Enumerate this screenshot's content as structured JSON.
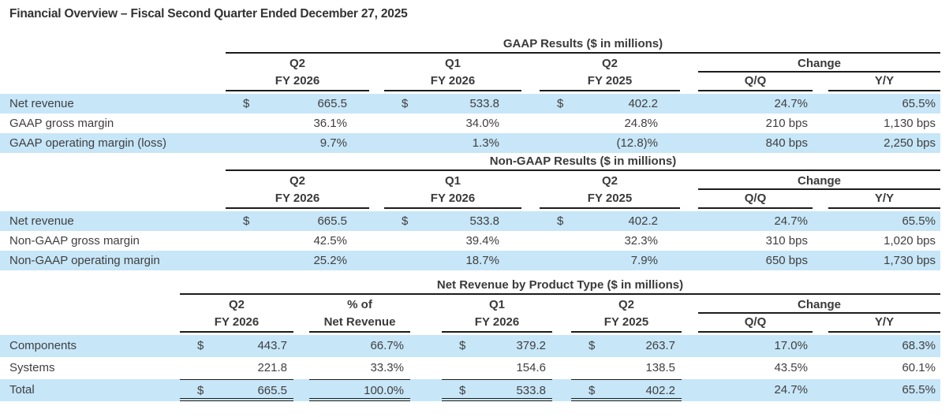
{
  "page_title": "Financial Overview – Fiscal Second Quarter Ended December 27, 2025",
  "colors": {
    "row_highlight": "#c7e6f8",
    "rule": "#1c1c1c",
    "text": "#3f3f3f"
  },
  "tables": {
    "gaap": {
      "title": "GAAP Results ($ in millions)",
      "headers": {
        "p1a": "Q2",
        "p1b": "FY 2026",
        "p2a": "Q1",
        "p2b": "FY 2026",
        "p3a": "Q2",
        "p3b": "FY 2025",
        "change": "Change",
        "qq": "Q/Q",
        "yy": "Y/Y"
      },
      "rows": [
        {
          "label": "Net revenue",
          "d1": "$",
          "v1": "665.5",
          "d2": "$",
          "v2": "533.8",
          "d3": "$",
          "v3": "402.2",
          "qq": "24.7%",
          "yy": "65.5%"
        },
        {
          "label": "GAAP gross margin",
          "v1": "36.1%",
          "v2": "34.0%",
          "v3": "24.8%",
          "qq": "210 bps",
          "yy": "1,130 bps"
        },
        {
          "label": "GAAP operating margin (loss)",
          "v1": "9.7%",
          "v2": "1.3%",
          "v3": "(12.8)%",
          "qq": "840 bps",
          "yy": "2,250 bps"
        }
      ]
    },
    "non_gaap": {
      "title": "Non-GAAP Results ($ in millions)",
      "headers": {
        "p1a": "Q2",
        "p1b": "FY 2026",
        "p2a": "Q1",
        "p2b": "FY 2026",
        "p3a": "Q2",
        "p3b": "FY 2025",
        "change": "Change",
        "qq": "Q/Q",
        "yy": "Y/Y"
      },
      "rows": [
        {
          "label": "Net revenue",
          "d1": "$",
          "v1": "665.5",
          "d2": "$",
          "v2": "533.8",
          "d3": "$",
          "v3": "402.2",
          "qq": "24.7%",
          "yy": "65.5%"
        },
        {
          "label": "Non-GAAP gross margin",
          "v1": "42.5%",
          "v2": "39.4%",
          "v3": "32.3%",
          "qq": "310 bps",
          "yy": "1,020 bps"
        },
        {
          "label": "Non-GAAP operating margin",
          "v1": "25.2%",
          "v2": "18.7%",
          "v3": "7.9%",
          "qq": "650 bps",
          "yy": "1,730 bps"
        }
      ]
    },
    "product": {
      "title": "Net Revenue by Product Type ($ in millions)",
      "headers": {
        "p1a": "Q2",
        "p1b": "FY 2026",
        "p2a": "% of",
        "p2b": "Net Revenue",
        "p3a": "Q1",
        "p3b": "FY 2026",
        "p4a": "Q2",
        "p4b": "FY 2025",
        "change": "Change",
        "qq": "Q/Q",
        "yy": "Y/Y"
      },
      "rows": [
        {
          "label": "Components",
          "d1": "$",
          "v1": "443.7",
          "v2": "66.7%",
          "d3": "$",
          "v3": "379.2",
          "d4": "$",
          "v4": "263.7",
          "qq": "17.0%",
          "yy": "68.3%"
        },
        {
          "label": "Systems",
          "v1": "221.8",
          "v2": "33.3%",
          "v3": "154.6",
          "v4": "138.5",
          "qq": "43.5%",
          "yy": "60.1%"
        },
        {
          "label": "Total",
          "d1": "$",
          "v1": "665.5",
          "v2": "100.0%",
          "d3": "$",
          "v3": "533.8",
          "d4": "$",
          "v4": "402.2",
          "qq": "24.7%",
          "yy": "65.5%"
        }
      ]
    }
  }
}
